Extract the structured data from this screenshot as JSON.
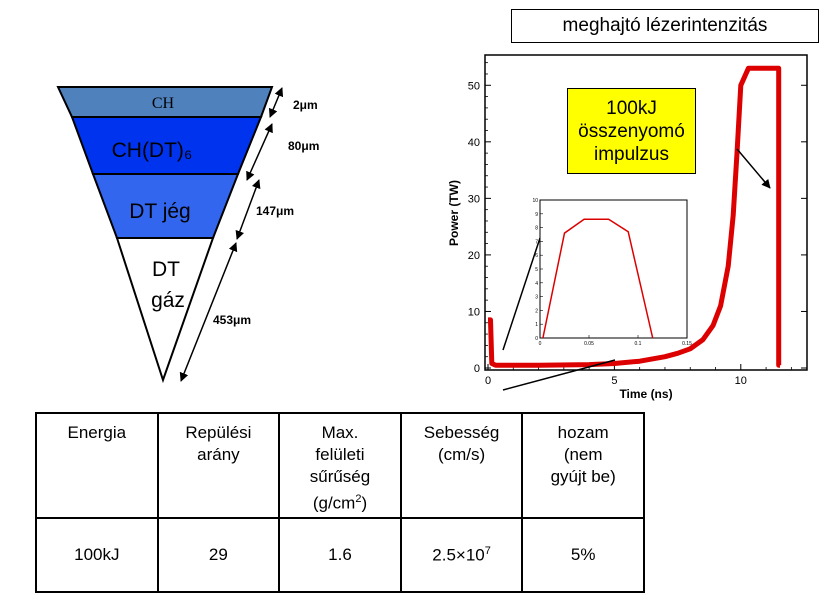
{
  "title": "meghajtó lézerintenzitás",
  "target": {
    "layers": [
      "CH",
      "CH(DT)₆",
      "DT jég"
    ],
    "gas_line1": "DT",
    "gas_line2": "gáz",
    "dimensions": [
      "2μm",
      "80μm",
      "147μm",
      "453μm"
    ],
    "colors": {
      "ch": "#4f81bd",
      "chdt": "#0033ee",
      "dtice": "#3366ee",
      "gas": "#ffffff"
    }
  },
  "callout": {
    "line1": "100kJ",
    "line2": "összenyomó",
    "line3": "impulzus",
    "color": "#ffff00"
  },
  "chart_data": [
    {
      "type": "line",
      "xlabel": "Time (ns)",
      "ylabel": "Power (TW)",
      "xlim": [
        0,
        12.5
      ],
      "ylim": [
        0,
        55
      ],
      "xticks": [
        "0",
        "5",
        "10"
      ],
      "yticks": [
        "0",
        "10",
        "20",
        "30",
        "40",
        "50"
      ],
      "series": [
        {
          "color": "#dd0000",
          "x": [
            0,
            0.1,
            0.15,
            0.3,
            2,
            4,
            5,
            6,
            7,
            7.5,
            8,
            8.5,
            8.9,
            9.2,
            9.5,
            9.7,
            9.85,
            10,
            10.3,
            11.4,
            11.5,
            11.5,
            11.55
          ],
          "y": [
            8.5,
            8.5,
            0.8,
            0.5,
            0.5,
            0.6,
            0.8,
            1.2,
            2,
            2.6,
            3.4,
            5,
            7.5,
            11,
            18,
            27,
            38,
            50,
            53,
            53,
            53,
            0.5,
            0.5
          ]
        }
      ]
    },
    {
      "type": "line",
      "xlim": [
        0,
        0.15
      ],
      "ylim": [
        0,
        10
      ],
      "xticks": [
        "0",
        "0.05",
        "0.1",
        "0.15"
      ],
      "yticks": [
        "0",
        "1",
        "2",
        "3",
        "4",
        "5",
        "6",
        "7",
        "8",
        "9",
        "10"
      ],
      "series": [
        {
          "color": "#dd0000",
          "x": [
            0.003,
            0.025,
            0.045,
            0.07,
            0.09,
            0.115
          ],
          "y": [
            0,
            7.6,
            8.6,
            8.6,
            7.7,
            0
          ]
        }
      ]
    }
  ],
  "table": {
    "headers": [
      [
        "Energia"
      ],
      [
        "Repülési",
        "arány"
      ],
      [
        "Max.",
        "felületi",
        "sűrűség"
      ],
      [
        "Sebesség",
        "(cm/s)"
      ],
      [
        "hozam",
        "(nem",
        "gyújt be)"
      ]
    ],
    "density_unit": "(g/cm",
    "density_sup": "2",
    "density_close": ")",
    "values": [
      "100kJ",
      "29",
      "1.6"
    ],
    "velocity_base": "2.5×10",
    "velocity_exp": "7",
    "yield": "5%"
  }
}
